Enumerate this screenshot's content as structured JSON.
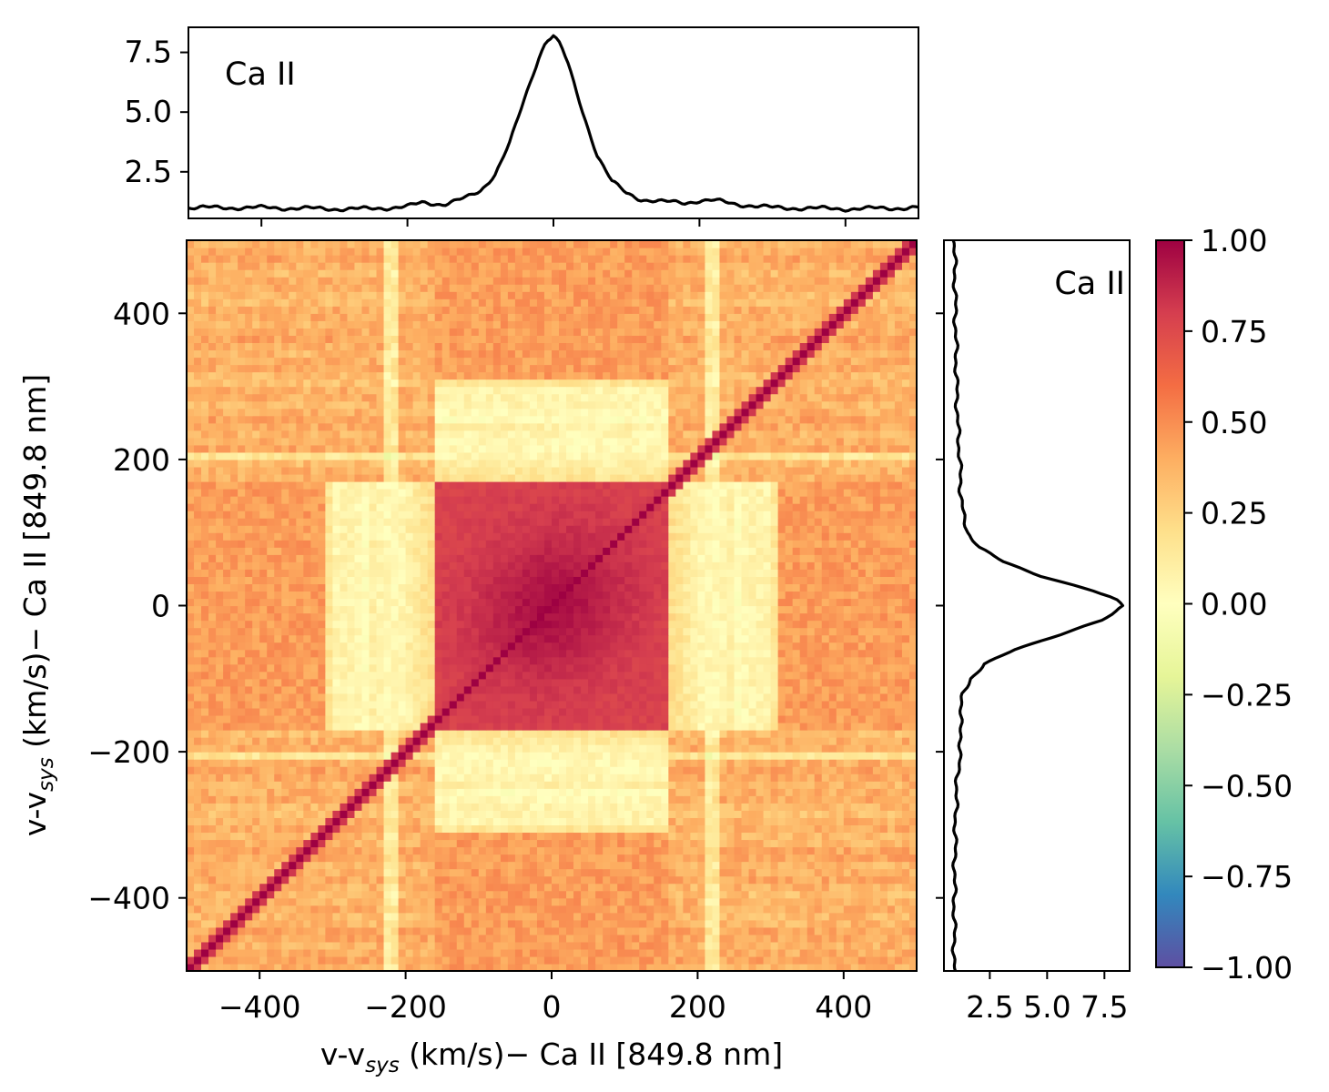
{
  "chart_data": [
    {
      "id": "top-profile",
      "type": "line",
      "annotation": "Ca II",
      "x": [
        -500,
        -400,
        -300,
        -250,
        -200,
        -180,
        -150,
        -120,
        -100,
        -80,
        -60,
        -40,
        -20,
        -10,
        0,
        10,
        20,
        40,
        60,
        80,
        100,
        120,
        150,
        180,
        200,
        220,
        250,
        300,
        400,
        500
      ],
      "y": [
        1.0,
        1.0,
        0.95,
        0.95,
        1.05,
        1.2,
        1.15,
        1.4,
        1.7,
        2.4,
        3.7,
        5.5,
        7.3,
        8.0,
        8.2,
        7.8,
        7.0,
        5.0,
        3.2,
        2.1,
        1.6,
        1.35,
        1.25,
        1.2,
        1.3,
        1.3,
        1.15,
        1.0,
        0.95,
        1.0
      ],
      "xlim": [
        -500,
        500
      ],
      "ylim": [
        0.55,
        8.55
      ],
      "yticks": [
        "2.5",
        "5.0",
        "7.5"
      ],
      "ytick_values": [
        2.5,
        5.0,
        7.5
      ]
    },
    {
      "id": "correlation-map",
      "type": "heatmap",
      "xlabel_main": "v-v",
      "xlabel_sub": "sys",
      "xlabel_rest": " (km/s)− Ca II [849.8 nm]",
      "ylabel_main": "v-v",
      "ylabel_sub": "sys",
      "ylabel_rest": " (km/s)− Ca II [849.8 nm]",
      "xlim": [
        -500,
        500
      ],
      "ylim": [
        -500,
        500
      ],
      "xticks": [
        "−400",
        "−200",
        "0",
        "200",
        "400"
      ],
      "xtick_values": [
        -400,
        -200,
        0,
        200,
        400
      ],
      "yticks": [
        "−400",
        "−200",
        "0",
        "200",
        "400"
      ],
      "ytick_values": [
        -400,
        -200,
        0,
        200,
        400
      ],
      "colormap": "Spectral_r",
      "vmin": -1.0,
      "vmax": 1.0,
      "description_values": {
        "diagonal": 1.0,
        "core_block_range_kms": [
          -170,
          170
        ],
        "core_block_value": 0.85,
        "side_bands_value": 0.05,
        "background_value": 0.35
      }
    },
    {
      "id": "right-profile",
      "type": "line",
      "annotation": "Ca II",
      "orientation": "vertical",
      "v": [
        -500,
        -400,
        -300,
        -250,
        -200,
        -180,
        -150,
        -120,
        -100,
        -80,
        -60,
        -40,
        -20,
        -10,
        0,
        10,
        20,
        40,
        60,
        80,
        100,
        120,
        150,
        180,
        200,
        220,
        250,
        300,
        400,
        500
      ],
      "flux": [
        0.95,
        0.95,
        1.0,
        1.05,
        1.2,
        1.25,
        1.2,
        1.35,
        1.65,
        2.3,
        3.6,
        5.5,
        7.4,
        8.0,
        8.3,
        7.9,
        7.0,
        4.8,
        3.1,
        2.0,
        1.55,
        1.35,
        1.25,
        1.2,
        1.2,
        1.15,
        1.1,
        1.05,
        1.0,
        0.95
      ],
      "xlim": [
        0.5,
        8.6
      ],
      "xticks": [
        "2.5",
        "5.0",
        "7.5"
      ],
      "xtick_values": [
        2.5,
        5.0,
        7.5
      ]
    },
    {
      "id": "colorbar",
      "type": "colorbar",
      "ticks": [
        "1.00",
        "0.75",
        "0.50",
        "0.25",
        "0.00",
        "−0.25",
        "−0.50",
        "−0.75",
        "−1.00"
      ],
      "tick_values": [
        1.0,
        0.75,
        0.5,
        0.25,
        0.0,
        -0.25,
        -0.5,
        -0.75,
        -1.0
      ],
      "colors": [
        "#5e4fa2",
        "#3288bd",
        "#66c2a5",
        "#abdda4",
        "#e6f598",
        "#ffffbf",
        "#fee08b",
        "#fdae61",
        "#f46d43",
        "#d53e4f",
        "#9e0142"
      ]
    }
  ]
}
